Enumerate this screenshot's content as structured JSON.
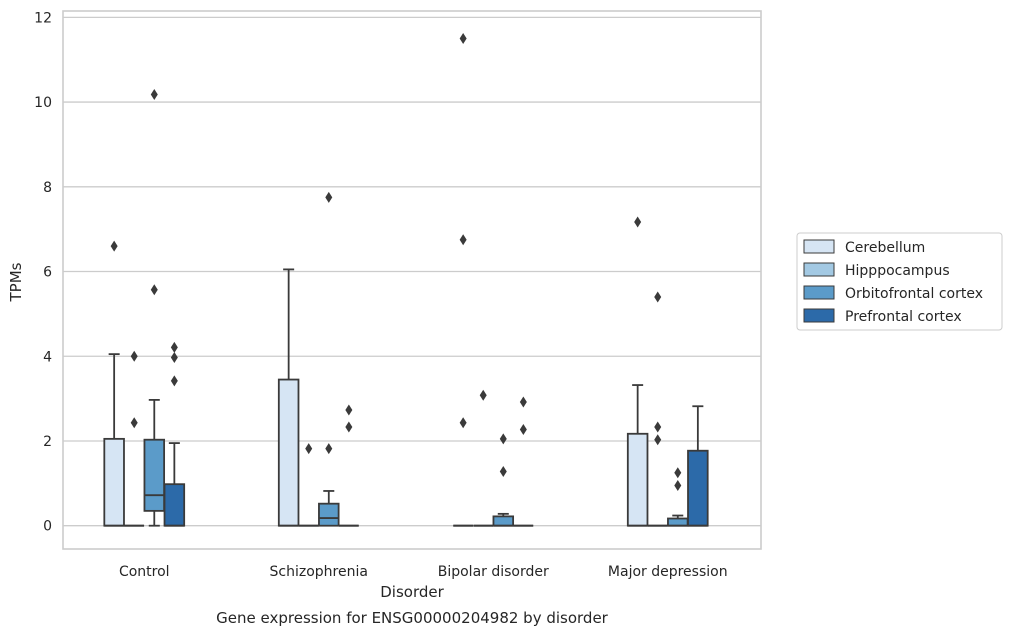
{
  "chart_data": {
    "type": "box",
    "title": "",
    "caption": "Gene expression for ENSG00000204982 by disorder",
    "xlabel": "Disorder",
    "ylabel": "TPMs",
    "ylim": [
      -0.55,
      12.15
    ],
    "yticks": [
      0,
      2,
      4,
      6,
      8,
      10,
      12
    ],
    "grid": "horizontal",
    "legend_position": "right",
    "categories": [
      "Control",
      "Schizophrenia",
      "Bipolar disorder",
      "Major depression"
    ],
    "series": [
      {
        "name": "Cerebellum",
        "color": "#d6e5f4",
        "boxes": [
          {
            "min": 0,
            "q1": 0,
            "median": 0,
            "q3": 2.05,
            "max": 4.05,
            "outliers": [
              6.6
            ]
          },
          {
            "min": 0,
            "q1": 0,
            "median": 0,
            "q3": 3.45,
            "max": 6.05,
            "outliers": []
          },
          {
            "min": 0,
            "q1": 0,
            "median": 0,
            "q3": 0,
            "max": 0,
            "outliers": [
              11.5,
              6.75,
              2.43
            ]
          },
          {
            "min": 0,
            "q1": 0,
            "median": 0,
            "q3": 2.17,
            "max": 3.32,
            "outliers": [
              7.17
            ]
          }
        ]
      },
      {
        "name": "Hipppocampus",
        "color": "#a3c9e3",
        "boxes": [
          {
            "min": 0,
            "q1": 0,
            "median": 0,
            "q3": 0,
            "max": 0,
            "outliers": [
              4.0,
              2.43
            ]
          },
          {
            "min": 0,
            "q1": 0,
            "median": 0,
            "q3": 0,
            "max": 0,
            "outliers": [
              1.82
            ]
          },
          {
            "min": 0,
            "q1": 0,
            "median": 0,
            "q3": 0,
            "max": 0,
            "outliers": [
              3.08
            ]
          },
          {
            "min": 0,
            "q1": 0,
            "median": 0,
            "q3": 0,
            "max": 0,
            "outliers": [
              5.4,
              2.33,
              2.03
            ]
          }
        ]
      },
      {
        "name": "Orbitofrontal cortex",
        "color": "#5b9bc9",
        "boxes": [
          {
            "min": 0,
            "q1": 0.35,
            "median": 0.72,
            "q3": 2.03,
            "max": 2.97,
            "outliers": [
              10.18,
              5.57
            ]
          },
          {
            "min": 0,
            "q1": 0,
            "median": 0.18,
            "q3": 0.52,
            "max": 0.82,
            "outliers": [
              7.75,
              1.82
            ]
          },
          {
            "min": 0,
            "q1": 0,
            "median": 0,
            "q3": 0.22,
            "max": 0.28,
            "outliers": [
              2.05,
              1.28
            ]
          },
          {
            "min": 0,
            "q1": 0,
            "median": 0,
            "q3": 0.17,
            "max": 0.24,
            "outliers": [
              1.25,
              0.95
            ]
          }
        ]
      },
      {
        "name": "Prefrontal cortex",
        "color": "#2c6aa9",
        "boxes": [
          {
            "min": 0,
            "q1": 0,
            "median": 0,
            "q3": 0.98,
            "max": 1.95,
            "outliers": [
              4.21,
              3.97,
              3.42
            ]
          },
          {
            "min": 0,
            "q1": 0,
            "median": 0,
            "q3": 0,
            "max": 0,
            "outliers": [
              2.73,
              2.33
            ]
          },
          {
            "min": 0,
            "q1": 0,
            "median": 0,
            "q3": 0,
            "max": 0,
            "outliers": [
              2.92,
              2.27
            ]
          },
          {
            "min": 0,
            "q1": 0,
            "median": 0,
            "q3": 1.77,
            "max": 2.82,
            "outliers": []
          }
        ]
      }
    ]
  }
}
